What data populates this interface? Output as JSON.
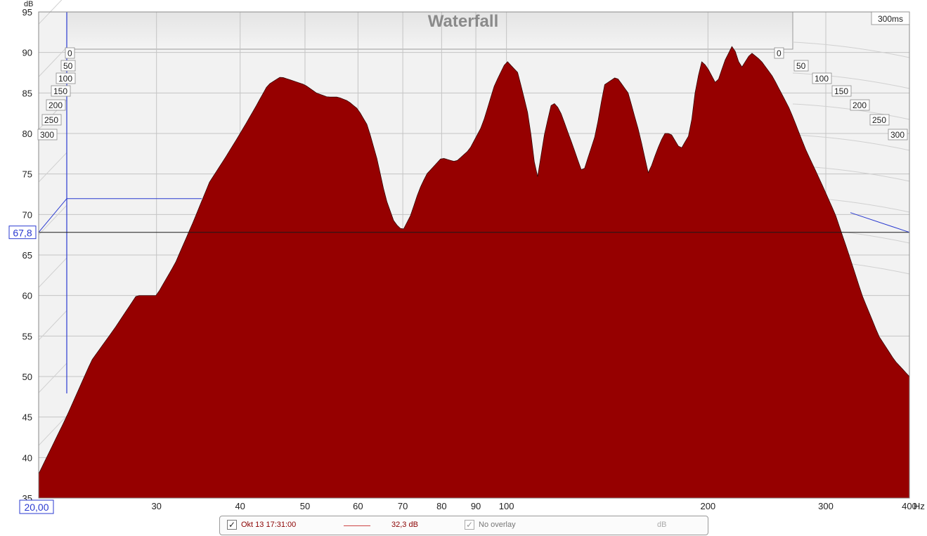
{
  "chart_data": {
    "type": "area",
    "title": "Waterfall",
    "ylabel": "dB",
    "xlabel": "Hz",
    "x_scale": "log",
    "xlim": [
      20,
      400
    ],
    "ylim": [
      35,
      95
    ],
    "x_ticks": [
      30,
      40,
      50,
      60,
      70,
      80,
      90,
      100,
      200,
      300
    ],
    "x_tick_labels": [
      "30",
      "40",
      "50",
      "60",
      "70",
      "80",
      "90",
      "100",
      "200",
      "300"
    ],
    "y_ticks": [
      35,
      40,
      45,
      50,
      55,
      60,
      65,
      70,
      75,
      80,
      85,
      90,
      95
    ],
    "time_ticks_ms": [
      0,
      50,
      100,
      150,
      200,
      250,
      300
    ],
    "time_window_label": "300ms",
    "cursor": {
      "y_value": 67.8,
      "y_label": "67,8",
      "x_label": "20,00"
    },
    "fill_color": "#a80000",
    "line_color": "#2a0000",
    "grid": true,
    "series": [
      {
        "time_ms": 0,
        "points": [
          [
            20,
            38
          ],
          [
            22,
            45
          ],
          [
            24,
            52
          ],
          [
            26,
            56
          ],
          [
            28,
            60
          ],
          [
            30,
            60
          ],
          [
            32,
            64
          ],
          [
            34,
            69
          ],
          [
            36,
            74
          ],
          [
            38,
            77
          ],
          [
            40,
            80
          ],
          [
            42,
            83
          ],
          [
            44,
            86
          ],
          [
            46,
            87
          ],
          [
            48,
            86.5
          ],
          [
            50,
            86
          ],
          [
            52,
            85
          ],
          [
            54,
            84.5
          ],
          [
            56,
            84.5
          ],
          [
            58,
            84
          ],
          [
            60,
            83
          ],
          [
            62,
            81
          ],
          [
            64,
            77
          ],
          [
            66,
            72
          ],
          [
            68,
            69
          ],
          [
            70,
            68
          ],
          [
            72,
            70
          ],
          [
            74,
            73
          ],
          [
            76,
            75
          ],
          [
            78,
            76
          ],
          [
            80,
            77
          ],
          [
            84,
            76.5
          ],
          [
            88,
            78
          ],
          [
            92,
            81
          ],
          [
            96,
            86
          ],
          [
            100,
            89
          ],
          [
            104,
            87.5
          ],
          [
            108,
            82
          ],
          [
            111,
            74
          ],
          [
            114,
            80
          ],
          [
            117,
            84
          ],
          [
            120,
            83
          ],
          [
            125,
            79
          ],
          [
            130,
            75
          ],
          [
            136,
            80
          ],
          [
            140,
            86
          ],
          [
            146,
            87
          ],
          [
            152,
            85
          ],
          [
            158,
            80
          ],
          [
            163,
            75
          ],
          [
            168,
            78
          ],
          [
            172,
            80
          ],
          [
            176,
            80
          ],
          [
            182,
            78
          ],
          [
            188,
            80
          ],
          [
            192,
            86
          ],
          [
            196,
            89
          ],
          [
            200,
            88
          ],
          [
            206,
            86
          ],
          [
            212,
            89
          ],
          [
            218,
            91
          ],
          [
            224,
            88
          ],
          [
            232,
            90
          ],
          [
            240,
            89
          ],
          [
            250,
            87
          ],
          [
            265,
            83
          ],
          [
            280,
            78
          ],
          [
            295,
            74
          ],
          [
            310,
            70
          ],
          [
            325,
            65
          ],
          [
            340,
            60
          ],
          [
            360,
            55
          ],
          [
            380,
            52
          ],
          [
            400,
            50
          ]
        ]
      }
    ]
  },
  "legend": {
    "measurement_label": "Okt 13 17:31:00",
    "measurement_value": "32,3 dB",
    "overlay_label": "No overlay",
    "overlay_value": "dB",
    "checkbox_checked": "✓"
  }
}
